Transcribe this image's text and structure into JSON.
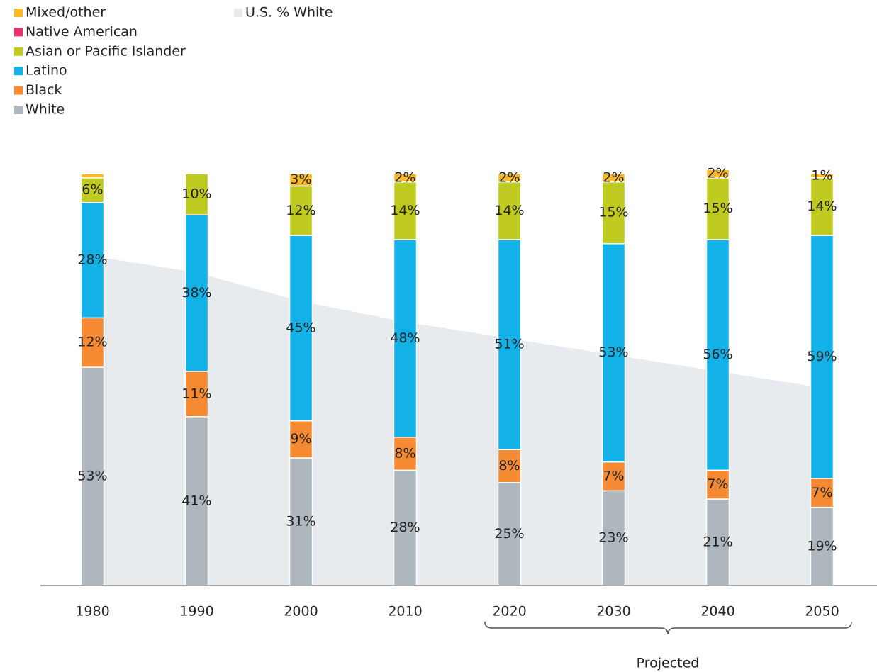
{
  "chart_data": {
    "type": "stacked_bar",
    "categories": [
      "1980",
      "1990",
      "2000",
      "2010",
      "2020",
      "2030",
      "2040",
      "2050"
    ],
    "ylim": [
      0,
      100
    ],
    "series": [
      {
        "name": "White",
        "color": "#aeb7bd",
        "values": [
          53,
          41,
          31,
          28,
          25,
          23,
          21,
          19
        ],
        "value_labels": [
          "53%",
          "41%",
          "31%",
          "28%",
          "25%",
          "23%",
          "21%",
          "19%"
        ]
      },
      {
        "name": "Black",
        "color": "#f58a33",
        "values": [
          12,
          11,
          9,
          8,
          8,
          7,
          7,
          7
        ],
        "value_labels": [
          "12%",
          "11%",
          "9%",
          "8%",
          "8%",
          "7%",
          "7%",
          "7%"
        ]
      },
      {
        "name": "Latino",
        "color": "#12b1e8",
        "values": [
          28,
          38,
          45,
          48,
          51,
          53,
          56,
          59
        ],
        "value_labels": [
          "28%",
          "38%",
          "45%",
          "48%",
          "51%",
          "53%",
          "56%",
          "59%"
        ]
      },
      {
        "name": "Asian or Pacific Islander",
        "color": "#bfcb20",
        "values": [
          6,
          10,
          12,
          14,
          14,
          15,
          15,
          14
        ],
        "value_labels": [
          "6%",
          "10%",
          "12%",
          "14%",
          "14%",
          "15%",
          "15%",
          "14%"
        ]
      },
      {
        "name": "Native American",
        "color": "#e8336d",
        "values": [
          0,
          0,
          0,
          0,
          0,
          0,
          0,
          0
        ],
        "value_labels": [
          null,
          null,
          null,
          null,
          null,
          null,
          null,
          null
        ]
      },
      {
        "name": "Mixed/other",
        "color": "#fbb829",
        "values": [
          1,
          0,
          3,
          2,
          2,
          2,
          2,
          1
        ],
        "value_labels": [
          null,
          null,
          "3%",
          "2%",
          "2%",
          "2%",
          "2%",
          "1%"
        ]
      }
    ],
    "area": {
      "name": "U.S. % White",
      "color": "#e8ebee",
      "values": [
        80,
        76,
        69,
        64,
        60,
        56,
        52,
        48
      ]
    },
    "annotation": "Projected"
  }
}
